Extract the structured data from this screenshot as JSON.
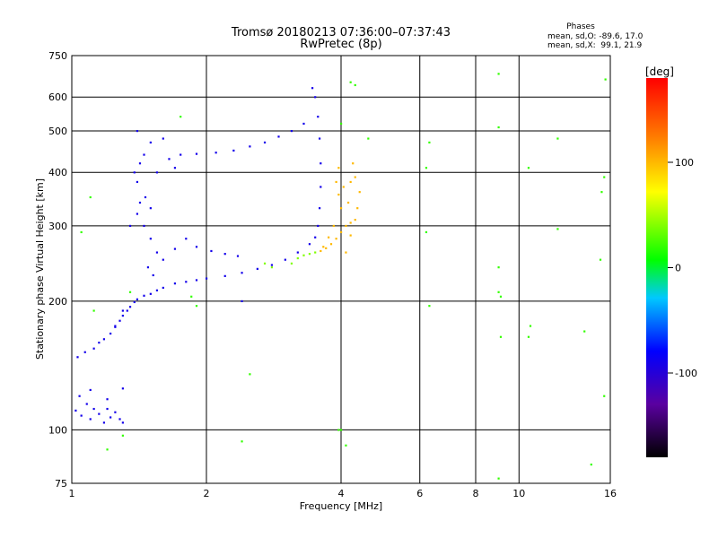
{
  "chart_data": {
    "type": "scatter",
    "title": "Tromsø 20180213 07:36:00–07:37:43",
    "subtitle": "RwPretec (8p)",
    "xlabel": "Frequency [MHz]",
    "ylabel": "Stationary phase Virtual Height [km]",
    "x_scale": "log",
    "y_scale": "log",
    "xlim": [
      1,
      16
    ],
    "ylim": [
      75,
      750
    ],
    "grid": true,
    "x_ticks": [
      1,
      2,
      4,
      6,
      8,
      10,
      16
    ],
    "x_tick_labels": [
      "1",
      "2",
      "4",
      "6",
      "8",
      "10",
      "16"
    ],
    "y_ticks": [
      75,
      100,
      200,
      300,
      400,
      500,
      600,
      750
    ],
    "y_tick_labels": [
      "75",
      "100",
      "200",
      "300",
      "400",
      "500",
      "600",
      "750"
    ],
    "phase_info": {
      "title": "Phases",
      "line_o": "mean, sd,O: -89.6, 17.0",
      "line_x": "mean, sd,X:  99.1, 21.9"
    },
    "colorbar": {
      "label": "[deg]",
      "range": [
        -180,
        180
      ],
      "ticks": [
        100,
        0,
        -100
      ],
      "tick_labels": [
        "100",
        "0",
        "-100"
      ],
      "colors": [
        "#000000",
        "#5a00a0",
        "#0000ff",
        "#00c8ff",
        "#00ff00",
        "#ffff00",
        "#ff8000",
        "#ff0000"
      ]
    },
    "series": [
      {
        "points": [
          [
            1.02,
            111
          ],
          [
            1.05,
            108
          ],
          [
            1.08,
            115
          ],
          [
            1.1,
            106
          ],
          [
            1.12,
            112
          ],
          [
            1.15,
            109
          ],
          [
            1.18,
            104
          ],
          [
            1.2,
            112
          ],
          [
            1.22,
            107
          ],
          [
            1.25,
            110
          ],
          [
            1.28,
            106
          ],
          [
            1.3,
            104
          ],
          [
            1.04,
            120
          ],
          [
            1.1,
            124
          ],
          [
            1.2,
            118
          ],
          [
            1.3,
            125
          ],
          [
            1.03,
            148
          ],
          [
            1.07,
            152
          ],
          [
            1.12,
            155
          ],
          [
            1.15,
            160
          ],
          [
            1.18,
            163
          ],
          [
            1.22,
            168
          ],
          [
            1.25,
            174
          ],
          [
            1.28,
            180
          ],
          [
            1.3,
            185
          ],
          [
            1.33,
            190
          ],
          [
            1.35,
            194
          ],
          [
            1.38,
            199
          ],
          [
            1.4,
            202
          ],
          [
            1.45,
            206
          ],
          [
            1.5,
            208
          ],
          [
            1.55,
            212
          ],
          [
            1.6,
            215
          ],
          [
            1.7,
            220
          ],
          [
            1.8,
            222
          ],
          [
            1.9,
            224
          ],
          [
            2.0,
            226
          ],
          [
            2.2,
            229
          ],
          [
            2.4,
            233
          ],
          [
            2.6,
            238
          ],
          [
            2.8,
            243
          ],
          [
            3.0,
            250
          ],
          [
            3.2,
            260
          ],
          [
            3.4,
            272
          ],
          [
            3.5,
            282
          ],
          [
            3.55,
            300
          ],
          [
            3.58,
            330
          ],
          [
            3.6,
            370
          ],
          [
            3.6,
            420
          ],
          [
            3.58,
            480
          ],
          [
            3.55,
            540
          ],
          [
            3.5,
            600
          ],
          [
            3.45,
            630
          ],
          [
            3.3,
            520
          ],
          [
            3.1,
            500
          ],
          [
            2.9,
            485
          ],
          [
            2.7,
            470
          ],
          [
            2.5,
            460
          ],
          [
            2.3,
            450
          ],
          [
            2.1,
            445
          ],
          [
            1.9,
            442
          ],
          [
            1.75,
            440
          ],
          [
            1.6,
            480
          ],
          [
            1.5,
            470
          ],
          [
            1.45,
            440
          ],
          [
            1.42,
            420
          ],
          [
            1.4,
            380
          ],
          [
            1.42,
            340
          ],
          [
            1.45,
            300
          ],
          [
            1.5,
            280
          ],
          [
            1.55,
            260
          ],
          [
            1.48,
            240
          ],
          [
            1.52,
            230
          ],
          [
            1.6,
            250
          ],
          [
            1.7,
            265
          ],
          [
            1.8,
            280
          ],
          [
            1.9,
            268
          ],
          [
            2.05,
            262
          ],
          [
            2.2,
            258
          ],
          [
            2.35,
            255
          ],
          [
            1.38,
            400
          ],
          [
            1.46,
            350
          ],
          [
            1.4,
            320
          ],
          [
            1.5,
            330
          ],
          [
            1.35,
            300
          ],
          [
            1.55,
            400
          ],
          [
            1.65,
            430
          ],
          [
            1.7,
            410
          ],
          [
            1.4,
            500
          ],
          [
            2.4,
            200
          ],
          [
            1.25,
            175
          ],
          [
            1.3,
            190
          ]
        ],
        "color_scale_value": -90
      },
      {
        "points": [
          [
            3.6,
            262
          ],
          [
            3.7,
            266
          ],
          [
            3.8,
            272
          ],
          [
            3.9,
            280
          ],
          [
            4.0,
            290
          ],
          [
            4.1,
            300
          ],
          [
            4.2,
            305
          ],
          [
            4.3,
            310
          ],
          [
            4.0,
            330
          ],
          [
            3.95,
            355
          ],
          [
            3.9,
            380
          ],
          [
            3.95,
            410
          ],
          [
            4.05,
            370
          ],
          [
            4.15,
            340
          ],
          [
            4.2,
            380
          ],
          [
            4.25,
            420
          ],
          [
            4.3,
            390
          ],
          [
            3.85,
            300
          ],
          [
            3.75,
            282
          ],
          [
            4.35,
            330
          ],
          [
            4.4,
            360
          ],
          [
            4.1,
            260
          ],
          [
            4.2,
            285
          ],
          [
            3.65,
            268
          ]
        ],
        "color_scale_value": 100
      },
      {
        "points": [
          [
            3.1,
            245
          ],
          [
            3.2,
            252
          ],
          [
            3.3,
            256
          ],
          [
            3.4,
            258
          ],
          [
            3.5,
            260
          ],
          [
            2.8,
            240
          ],
          [
            2.7,
            245
          ]
        ],
        "color_scale_value": 40
      },
      {
        "points": [
          [
            1.1,
            350
          ],
          [
            1.05,
            290
          ],
          [
            1.12,
            190
          ],
          [
            1.35,
            210
          ],
          [
            1.85,
            205
          ],
          [
            1.9,
            195
          ],
          [
            1.75,
            540
          ],
          [
            4.3,
            640
          ],
          [
            4.2,
            650
          ],
          [
            4.0,
            520
          ],
          [
            4.6,
            480
          ],
          [
            6.3,
            470
          ],
          [
            6.2,
            410
          ],
          [
            6.2,
            290
          ],
          [
            6.3,
            195
          ],
          [
            9.0,
            680
          ],
          [
            9.0,
            510
          ],
          [
            9.0,
            240
          ],
          [
            9.0,
            210
          ],
          [
            9.1,
            205
          ],
          [
            9.1,
            165
          ],
          [
            10.5,
            410
          ],
          [
            10.6,
            175
          ],
          [
            10.5,
            165
          ],
          [
            12.2,
            480
          ],
          [
            12.2,
            295
          ],
          [
            14.0,
            170
          ],
          [
            15.2,
            250
          ],
          [
            15.5,
            390
          ],
          [
            15.3,
            360
          ],
          [
            15.6,
            660
          ],
          [
            15.5,
            120
          ],
          [
            14.5,
            83
          ],
          [
            9.0,
            77
          ],
          [
            4.0,
            100
          ],
          [
            4.1,
            92
          ],
          [
            2.4,
            94
          ],
          [
            2.5,
            135
          ],
          [
            1.3,
            97
          ],
          [
            1.2,
            90
          ],
          [
            3.95,
            100
          ]
        ],
        "color_scale_value": 20
      }
    ]
  }
}
